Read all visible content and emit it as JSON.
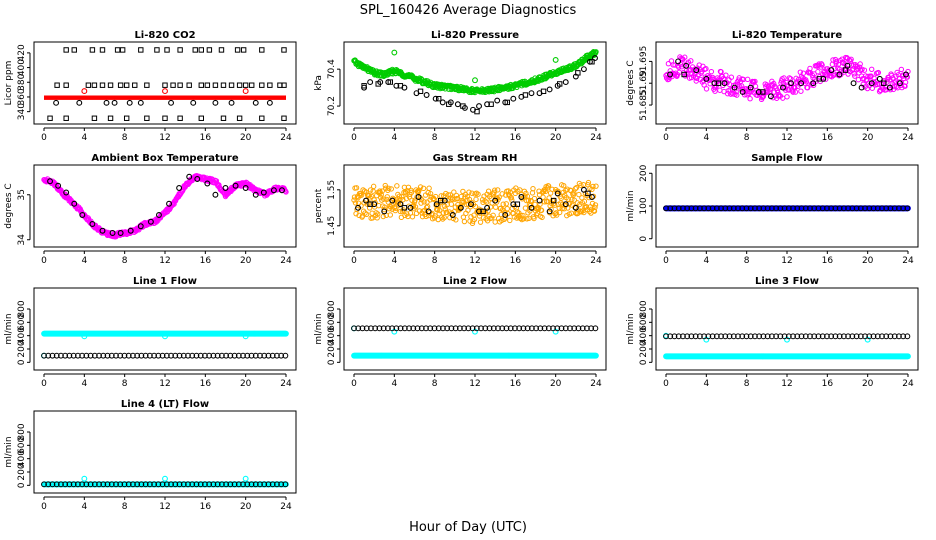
{
  "figure": {
    "title": "SPL_160426  Average Diagnostics",
    "xlabel": "Hour of Day (UTC)"
  },
  "chart_data": [
    {
      "type": "scatter",
      "title": "Li-820 CO2",
      "ylabel": "Licor ppm",
      "xlim": [
        0,
        24
      ],
      "xticks": [
        0,
        4,
        8,
        12,
        16,
        20,
        24
      ],
      "ylim": [
        330,
        428
      ],
      "yticks": [
        340,
        360,
        380,
        400,
        420
      ],
      "series": [
        {
          "color": "#ff0000",
          "marker": "band",
          "band": [
            356,
            362
          ],
          "step": 0.05
        },
        {
          "color": "#000000",
          "marker": "square",
          "x": [
            1.3,
            2.2,
            4.4,
            5.0,
            5.8,
            6.6,
            7.6,
            8.2,
            9.0,
            10.2,
            12.0,
            12.8,
            13.5,
            14.4,
            15.6,
            16.2,
            17.0,
            17.8,
            18.6,
            19.4,
            20.0,
            20.6,
            21.6,
            22.4,
            23.4,
            23.8
          ],
          "y": [
            376,
            376,
            376,
            376,
            376,
            376,
            376,
            376,
            376,
            376,
            376,
            376,
            376,
            376,
            376,
            376,
            376,
            376,
            376,
            376,
            376,
            376,
            376,
            376,
            376,
            376
          ]
        },
        {
          "color": "#000000",
          "marker": "square",
          "x": [
            2.2,
            3.0,
            4.8,
            5.8,
            7.3,
            7.8,
            9.6,
            11.2,
            12.2,
            13.5,
            15.0,
            15.6,
            16.4,
            17.6,
            19.2,
            19.8,
            21.6,
            23.8
          ],
          "y": [
            424,
            424,
            424,
            424,
            424,
            424,
            424,
            424,
            424,
            424,
            424,
            424,
            424,
            424,
            424,
            424,
            424,
            424
          ]
        },
        {
          "color": "#000000",
          "marker": "square",
          "x": [
            0.6,
            2.2,
            5.0,
            6.6,
            8.2,
            10.2,
            12.0,
            13.5,
            15.6,
            17.8,
            19.4,
            21.6,
            23.8
          ],
          "y": [
            331,
            331,
            331,
            331,
            331,
            331,
            331,
            331,
            331,
            331,
            331,
            331,
            331
          ]
        },
        {
          "color": "#000000",
          "marker": "circle",
          "x": [
            1.2,
            3.5,
            6.2,
            7.0,
            8.5,
            9.6,
            12.6,
            14.8,
            17.0,
            18.6,
            21.0,
            22.4
          ],
          "y": [
            352,
            352,
            352,
            352,
            352,
            352,
            352,
            352,
            352,
            352,
            352,
            352
          ]
        },
        {
          "color": "#ff0000",
          "marker": "circle",
          "x": [
            4.0,
            12.0,
            20.0
          ],
          "y": [
            368,
            368,
            368
          ]
        }
      ]
    },
    {
      "type": "scatter",
      "title": "Li-820 Pressure",
      "ylabel": "kPa",
      "xlim": [
        0,
        24
      ],
      "xticks": [
        0,
        4,
        8,
        12,
        16,
        20,
        24
      ],
      "ylim": [
        70.13,
        70.52
      ],
      "yticks": [
        70.2,
        70.4
      ],
      "series": [
        {
          "color": "#00cc00",
          "marker": "trend",
          "kx": [
            0,
            1,
            2,
            3,
            4,
            6,
            8,
            10,
            12,
            14,
            16,
            18,
            20,
            22,
            23,
            24
          ],
          "ky": [
            70.44,
            70.41,
            70.38,
            70.37,
            70.39,
            70.35,
            70.31,
            70.3,
            70.28,
            70.29,
            70.31,
            70.34,
            70.38,
            70.42,
            70.46,
            70.49
          ],
          "step": 0.05,
          "spread": 0.025
        },
        {
          "color": "#00cc00",
          "marker": "circle",
          "x": [
            4.0,
            12.0,
            20.0
          ],
          "y": [
            70.49,
            70.34,
            70.45
          ]
        },
        {
          "color": "#000000",
          "marker": "circle",
          "x": [
            1.0,
            1.6,
            2.6,
            3.4,
            4.2,
            5.0,
            6.2,
            7.2,
            8.1,
            8.8,
            9.6,
            10.3,
            11.0,
            11.8,
            12.4,
            13.2,
            14.2,
            15.0,
            15.8,
            16.6,
            17.6,
            18.4,
            19.4,
            20.2,
            21.0,
            22.0,
            22.8,
            23.4,
            23.9
          ],
          "y": [
            70.3,
            70.33,
            70.33,
            70.33,
            70.31,
            70.3,
            70.27,
            70.26,
            70.24,
            70.22,
            70.22,
            70.21,
            70.19,
            70.18,
            70.2,
            70.21,
            70.23,
            70.22,
            70.24,
            70.25,
            70.27,
            70.27,
            70.29,
            70.31,
            70.33,
            70.36,
            70.4,
            70.44,
            70.46
          ]
        },
        {
          "color": "#000000",
          "marker": "square",
          "x": [
            1.0,
            2.4,
            3.6,
            4.6,
            6.6,
            8.4,
            9.4,
            10.8,
            12.2,
            13.6,
            15.2,
            17.0,
            18.8,
            20.4,
            22.2,
            23.6
          ],
          "y": [
            70.31,
            70.32,
            70.33,
            70.31,
            70.28,
            70.24,
            70.21,
            70.2,
            70.17,
            70.21,
            70.22,
            70.26,
            70.28,
            70.32,
            70.38,
            70.44
          ]
        }
      ]
    },
    {
      "type": "scatter",
      "title": "Li-820 Temperature",
      "ylabel": "degrees C",
      "xlim": [
        0,
        24
      ],
      "xticks": [
        0,
        4,
        8,
        12,
        16,
        20,
        24
      ],
      "ylim": [
        51.6818,
        51.6983
      ],
      "yticks": [
        51.685,
        51.69,
        51.695
      ],
      "series": [
        {
          "color": "#ff00ff",
          "marker": "scatter",
          "kx": [
            0,
            2,
            4,
            6,
            8,
            10,
            12,
            14,
            16,
            18,
            20,
            22,
            24
          ],
          "ky": [
            51.693,
            51.694,
            51.691,
            51.69,
            51.689,
            51.688,
            51.689,
            51.691,
            51.693,
            51.694,
            51.691,
            51.69,
            51.692
          ],
          "step": 0.06,
          "spread": 0.0048
        },
        {
          "color": "#000000",
          "marker": "circle",
          "x": [
            0.4,
            1.2,
            2.0,
            3.0,
            4.0,
            4.8,
            5.8,
            6.8,
            7.6,
            8.4,
            9.2,
            10.4,
            11.6,
            12.4,
            13.4,
            14.6,
            15.6,
            16.4,
            17.2,
            18.0,
            18.6,
            19.4,
            20.4,
            21.2,
            22.2,
            23.2,
            23.8
          ],
          "y": [
            51.692,
            51.695,
            51.694,
            51.693,
            51.691,
            51.69,
            51.69,
            51.689,
            51.688,
            51.689,
            51.688,
            51.687,
            51.689,
            51.69,
            51.69,
            51.69,
            51.691,
            51.693,
            51.692,
            51.694,
            51.69,
            51.689,
            51.69,
            51.691,
            51.689,
            51.69,
            51.692
          ]
        },
        {
          "color": "#000000",
          "marker": "square",
          "x": [
            1.8,
            5.2,
            9.6,
            15.2,
            17.8,
            21.6
          ],
          "y": [
            51.692,
            51.69,
            51.688,
            51.691,
            51.693,
            51.69
          ]
        }
      ]
    },
    {
      "type": "scatter",
      "title": "Ambient Box Temperature",
      "ylabel": "degrees C",
      "xlim": [
        0,
        24
      ],
      "xticks": [
        0,
        4,
        8,
        12,
        16,
        20,
        24
      ],
      "ylim": [
        33.95,
        35.55
      ],
      "yticks": [
        34.0,
        35.0
      ],
      "series": [
        {
          "color": "#ff00ff",
          "marker": "trend",
          "kx": [
            0,
            1,
            2,
            3,
            4,
            5,
            6,
            7,
            8,
            9,
            10,
            11,
            12,
            13,
            14,
            15,
            16,
            17,
            18,
            19,
            20,
            21,
            22,
            23,
            24
          ],
          "ky": [
            35.35,
            35.25,
            35.0,
            34.8,
            34.55,
            34.3,
            34.15,
            34.1,
            34.15,
            34.2,
            34.35,
            34.4,
            34.6,
            34.85,
            35.2,
            35.4,
            35.35,
            35.3,
            35.0,
            35.2,
            35.25,
            35.1,
            35.0,
            35.15,
            35.1
          ],
          "step": 0.05,
          "spread": 0.08
        },
        {
          "color": "#000000",
          "marker": "circle",
          "x": [
            0.6,
            1.4,
            2.2,
            3.0,
            3.8,
            4.8,
            5.8,
            6.8,
            7.6,
            8.6,
            9.6,
            10.6,
            11.4,
            12.4,
            13.4,
            14.4,
            15.2,
            16.2,
            17.0,
            18.0,
            19.0,
            20.0,
            21.0,
            21.8,
            22.8,
            23.6
          ],
          "y": [
            35.3,
            35.2,
            35.05,
            34.8,
            34.55,
            34.35,
            34.2,
            34.15,
            34.15,
            34.2,
            34.3,
            34.4,
            34.55,
            34.8,
            35.15,
            35.4,
            35.35,
            35.25,
            35.0,
            35.15,
            35.2,
            35.15,
            35.0,
            35.05,
            35.1,
            35.1
          ]
        }
      ]
    },
    {
      "type": "scatter",
      "title": "Gas Stream RH",
      "ylabel": "percent",
      "xlim": [
        0,
        24
      ],
      "xticks": [
        0,
        4,
        8,
        12,
        16,
        20,
        24
      ],
      "ylim": [
        1.405,
        1.605
      ],
      "yticks": [
        1.45,
        1.55
      ],
      "series": [
        {
          "color": "#ffa500",
          "marker": "scatter",
          "kx": [
            0,
            4,
            8,
            12,
            16,
            20,
            24
          ],
          "ky": [
            1.51,
            1.52,
            1.51,
            1.5,
            1.51,
            1.52,
            1.53
          ],
          "step": 0.05,
          "spread": 0.09
        },
        {
          "color": "#000000",
          "marker": "circle",
          "x": [
            0.4,
            1.2,
            2.0,
            3.0,
            3.8,
            4.6,
            5.6,
            6.4,
            7.4,
            8.2,
            9.0,
            9.8,
            10.6,
            11.6,
            12.4,
            13.2,
            14.0,
            15.0,
            15.8,
            16.6,
            17.6,
            18.4,
            19.4,
            20.2,
            21.0,
            22.0,
            22.8,
            23.6
          ],
          "y": [
            1.5,
            1.52,
            1.51,
            1.49,
            1.52,
            1.51,
            1.5,
            1.53,
            1.49,
            1.51,
            1.52,
            1.48,
            1.5,
            1.51,
            1.49,
            1.5,
            1.52,
            1.48,
            1.51,
            1.53,
            1.5,
            1.52,
            1.49,
            1.54,
            1.51,
            1.5,
            1.55,
            1.53
          ]
        },
        {
          "color": "#000000",
          "marker": "square",
          "x": [
            1.6,
            5.0,
            8.6,
            12.8,
            16.2,
            19.8,
            23.2
          ],
          "y": [
            1.51,
            1.5,
            1.52,
            1.49,
            1.51,
            1.52,
            1.54
          ]
        }
      ]
    },
    {
      "type": "scatter",
      "title": "Sample Flow",
      "ylabel": "ml/min",
      "xlim": [
        0,
        24
      ],
      "xticks": [
        0,
        4,
        8,
        12,
        16,
        20,
        24
      ],
      "ylim": [
        -10,
        210
      ],
      "yticks": [
        0,
        100,
        200
      ],
      "series": [
        {
          "color": "#0000ff",
          "marker": "dots",
          "y_const": 93,
          "step": 0.05
        },
        {
          "color": "#000000",
          "marker": "dots",
          "y_const": 93,
          "step": 0.42
        }
      ]
    },
    {
      "type": "scatter",
      "title": "Line 1 Flow",
      "ylabel": "ml/min",
      "xlim": [
        0,
        24
      ],
      "xticks": [
        0,
        4,
        8,
        12,
        16,
        20,
        24
      ],
      "ylim": [
        -40,
        1040
      ],
      "yticks": [
        0,
        200,
        400,
        600,
        800
      ],
      "series": [
        {
          "color": "#00ffff",
          "marker": "dots",
          "y_const": 430,
          "step": 0.05
        },
        {
          "color": "#00ffff",
          "marker": "circle",
          "x": [
            0.0
          ],
          "y": [
            100
          ]
        },
        {
          "color": "#00ffff",
          "marker": "circle",
          "x": [
            4.0,
            12.0,
            20.0
          ],
          "y": [
            390,
            390,
            390
          ]
        },
        {
          "color": "#000000",
          "marker": "dots",
          "y_const": 100,
          "step": 0.42
        }
      ]
    },
    {
      "type": "scatter",
      "title": "Line 2 Flow",
      "ylabel": "ml/min",
      "xlim": [
        0,
        24
      ],
      "xticks": [
        0,
        4,
        8,
        12,
        16,
        20,
        24
      ],
      "ylim": [
        -40,
        1040
      ],
      "yticks": [
        0,
        200,
        400,
        600,
        800
      ],
      "series": [
        {
          "color": "#00ffff",
          "marker": "dots",
          "y_const": 100,
          "step": 0.05
        },
        {
          "color": "#00ffff",
          "marker": "circle",
          "x": [
            0.0
          ],
          "y": [
            510
          ]
        },
        {
          "color": "#00ffff",
          "marker": "circle",
          "x": [
            4.0,
            12.0,
            20.0
          ],
          "y": [
            460,
            460,
            460
          ]
        },
        {
          "color": "#000000",
          "marker": "dots",
          "y_const": 510,
          "step": 0.42
        }
      ]
    },
    {
      "type": "scatter",
      "title": "Line 3 Flow",
      "ylabel": "ml/min",
      "xlim": [
        0,
        24
      ],
      "xticks": [
        0,
        4,
        8,
        12,
        16,
        20,
        24
      ],
      "ylim": [
        -40,
        1040
      ],
      "yticks": [
        0,
        200,
        400,
        600,
        800
      ],
      "series": [
        {
          "color": "#00ffff",
          "marker": "dots",
          "y_const": 90,
          "step": 0.05
        },
        {
          "color": "#00ffff",
          "marker": "circle",
          "x": [
            0.0
          ],
          "y": [
            400
          ]
        },
        {
          "color": "#00ffff",
          "marker": "circle",
          "x": [
            4.0,
            12.0,
            20.0
          ],
          "y": [
            340,
            340,
            340
          ]
        },
        {
          "color": "#000000",
          "marker": "dots",
          "y_const": 390,
          "step": 0.42
        }
      ]
    },
    {
      "type": "scatter",
      "title": "Line 4 (LT) Flow",
      "ylabel": "ml/min",
      "xlim": [
        0,
        24
      ],
      "xticks": [
        0,
        4,
        8,
        12,
        16,
        20,
        24
      ],
      "ylim": [
        -40,
        1040
      ],
      "yticks": [
        0,
        200,
        400,
        600,
        800
      ],
      "series": [
        {
          "color": "#00ffff",
          "marker": "dots",
          "y_const": 15,
          "step": 0.05
        },
        {
          "color": "#00ffff",
          "marker": "circle",
          "x": [
            4.0,
            12.0,
            20.0
          ],
          "y": [
            100,
            100,
            100
          ]
        },
        {
          "color": "#000000",
          "marker": "dots",
          "y_const": 15,
          "step": 0.42
        }
      ]
    }
  ]
}
